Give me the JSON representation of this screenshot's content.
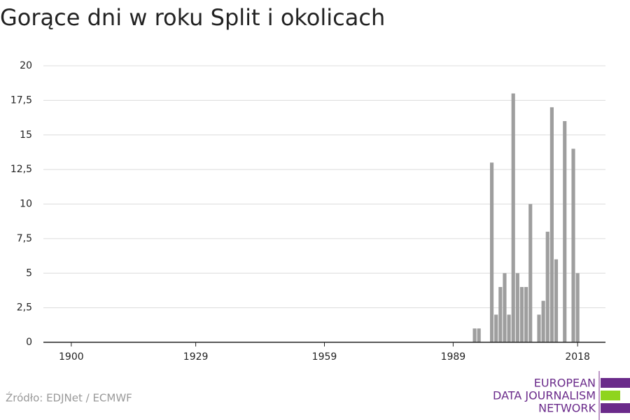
{
  "chart_data": {
    "type": "bar",
    "title": "Gorące dni w roku Split i okolicach",
    "x": [
      1994,
      1995,
      1996,
      1997,
      1998,
      1999,
      2000,
      2001,
      2002,
      2003,
      2004,
      2005,
      2006,
      2007,
      2008,
      2009,
      2010,
      2011,
      2012,
      2013,
      2014,
      2015,
      2016,
      2017,
      2018
    ],
    "values": [
      1,
      1,
      0,
      0,
      13,
      2,
      4,
      5,
      2,
      18,
      5,
      4,
      4,
      10,
      0,
      2,
      3,
      8,
      17,
      6,
      0,
      16,
      0,
      14,
      5
    ],
    "color": "#9e9e9e",
    "xlim": [
      1893.5,
      2024.5
    ],
    "xticks": [
      1900,
      1929,
      1959,
      1989,
      2018
    ],
    "ylim": [
      0,
      20
    ],
    "yticks": [
      0,
      {
        "value": 2.5,
        "label": "2,5"
      },
      5,
      {
        "value": 7.5,
        "label": "7,5"
      },
      10,
      {
        "value": 12.5,
        "label": "12,5"
      },
      15,
      {
        "value": 17.5,
        "label": "17,5"
      },
      20
    ],
    "grid": true,
    "source": "Źródło: EDJNet / ECMWF"
  },
  "logo": {
    "lines": [
      "EUROPEAN",
      "DATA JOURNALISM",
      "NETWORK"
    ]
  }
}
